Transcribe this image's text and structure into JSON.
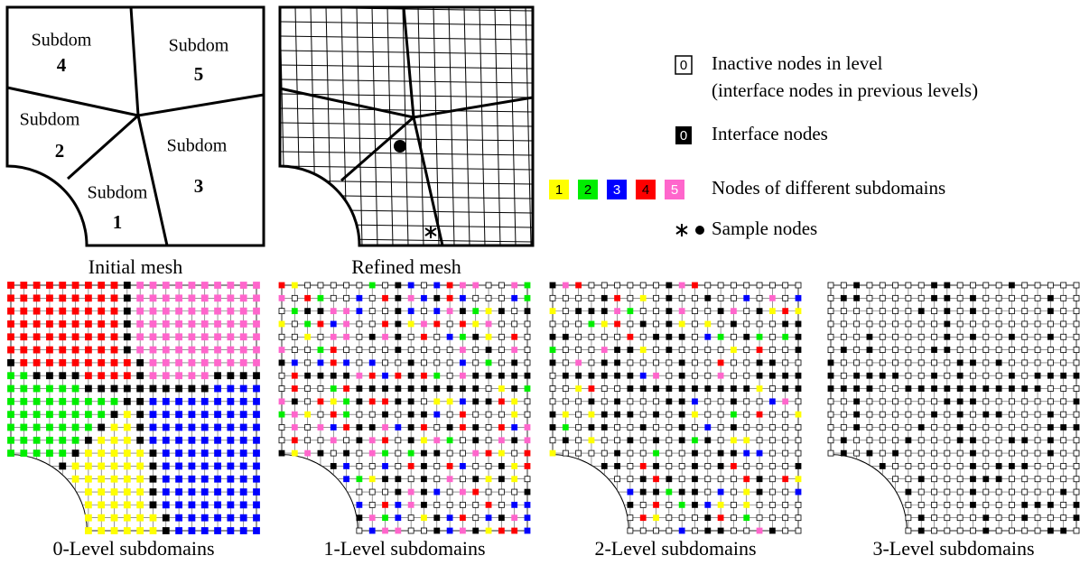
{
  "initial_mesh": {
    "caption": "Initial mesh",
    "subdomains": [
      {
        "label": "Subdom",
        "id": "4"
      },
      {
        "label": "Subdom",
        "id": "5"
      },
      {
        "label": "Subdom",
        "id": "2"
      },
      {
        "label": "Subdom",
        "id": "3"
      },
      {
        "label": "Subdom",
        "id": "1"
      }
    ]
  },
  "refined_mesh": {
    "caption": "Refined mesh"
  },
  "legend": {
    "inactive": {
      "symbol": "0",
      "text": "Inactive nodes in level",
      "text2": "(interface nodes in previous levels)"
    },
    "interface": {
      "symbol": "0",
      "text": "Interface nodes"
    },
    "subdomain_nodes": {
      "symbols": [
        "1",
        "2",
        "3",
        "4",
        "5"
      ],
      "text": "Nodes of different subdomains"
    },
    "sample": {
      "text": "Sample nodes"
    }
  },
  "level_panels": [
    {
      "caption": "0-Level subdomains"
    },
    {
      "caption": "1-Level subdomains"
    },
    {
      "caption": "2-Level subdomains"
    },
    {
      "caption": "3-Level subdomains"
    }
  ]
}
